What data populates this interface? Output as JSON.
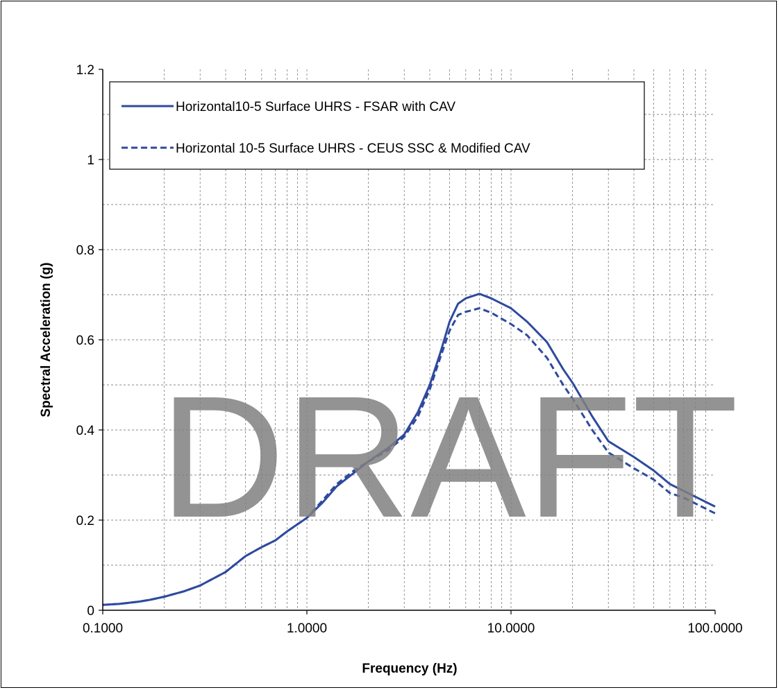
{
  "chart_data": {
    "type": "line",
    "xlabel": "Frequency (Hz)",
    "ylabel": "Spectral Acceleration (g)",
    "x_scale": "log",
    "xlim": [
      0.1,
      100
    ],
    "ylim": [
      0,
      1.2
    ],
    "x_ticks": [
      {
        "value": 0.1,
        "label": "0.1000"
      },
      {
        "value": 1,
        "label": "1.0000"
      },
      {
        "value": 10,
        "label": "10.0000"
      },
      {
        "value": 100,
        "label": "100.0000"
      }
    ],
    "y_ticks": [
      {
        "value": 0,
        "label": "0"
      },
      {
        "value": 0.2,
        "label": "0.2"
      },
      {
        "value": 0.4,
        "label": "0.4"
      },
      {
        "value": 0.6,
        "label": "0.6"
      },
      {
        "value": 0.8,
        "label": "0.8"
      },
      {
        "value": 1.0,
        "label": "1"
      },
      {
        "value": 1.2,
        "label": "1.2"
      }
    ],
    "grid": true,
    "legend_position": "top-left",
    "watermark": "DRAFT",
    "series": [
      {
        "name": "Horizontal10-5 Surface UHRS - FSAR with CAV",
        "style": "solid",
        "color": "#2e4a9e",
        "points": [
          [
            0.1,
            0.012
          ],
          [
            0.12,
            0.014
          ],
          [
            0.15,
            0.019
          ],
          [
            0.17,
            0.023
          ],
          [
            0.2,
            0.03
          ],
          [
            0.25,
            0.042
          ],
          [
            0.3,
            0.055
          ],
          [
            0.4,
            0.085
          ],
          [
            0.5,
            0.12
          ],
          [
            0.6,
            0.14
          ],
          [
            0.7,
            0.155
          ],
          [
            0.8,
            0.175
          ],
          [
            1.0,
            0.205
          ],
          [
            1.2,
            0.24
          ],
          [
            1.4,
            0.275
          ],
          [
            1.7,
            0.305
          ],
          [
            2.0,
            0.33
          ],
          [
            2.5,
            0.36
          ],
          [
            3.0,
            0.39
          ],
          [
            3.5,
            0.44
          ],
          [
            4.0,
            0.5
          ],
          [
            4.5,
            0.57
          ],
          [
            5.0,
            0.64
          ],
          [
            5.5,
            0.68
          ],
          [
            6.0,
            0.692
          ],
          [
            7.0,
            0.702
          ],
          [
            8.0,
            0.692
          ],
          [
            10.0,
            0.67
          ],
          [
            12.0,
            0.64
          ],
          [
            15.0,
            0.595
          ],
          [
            18.0,
            0.535
          ],
          [
            20.0,
            0.505
          ],
          [
            25.0,
            0.43
          ],
          [
            30.0,
            0.375
          ],
          [
            40.0,
            0.34
          ],
          [
            50.0,
            0.31
          ],
          [
            60.0,
            0.28
          ],
          [
            70.0,
            0.265
          ],
          [
            100.0,
            0.23
          ]
        ]
      },
      {
        "name": "Horizontal 10-5 Surface UHRS - CEUS SSC & Modified CAV",
        "style": "dashed",
        "color": "#2e4a9e",
        "points": [
          [
            0.1,
            0.012
          ],
          [
            0.12,
            0.014
          ],
          [
            0.15,
            0.019
          ],
          [
            0.17,
            0.023
          ],
          [
            0.2,
            0.03
          ],
          [
            0.25,
            0.042
          ],
          [
            0.3,
            0.055
          ],
          [
            0.4,
            0.085
          ],
          [
            0.5,
            0.12
          ],
          [
            0.6,
            0.14
          ],
          [
            0.7,
            0.155
          ],
          [
            0.8,
            0.175
          ],
          [
            1.0,
            0.205
          ],
          [
            1.2,
            0.245
          ],
          [
            1.4,
            0.28
          ],
          [
            1.7,
            0.31
          ],
          [
            2.0,
            0.33
          ],
          [
            2.5,
            0.355
          ],
          [
            3.0,
            0.385
          ],
          [
            3.5,
            0.43
          ],
          [
            4.0,
            0.49
          ],
          [
            4.5,
            0.56
          ],
          [
            5.0,
            0.62
          ],
          [
            5.5,
            0.655
          ],
          [
            6.0,
            0.662
          ],
          [
            7.0,
            0.67
          ],
          [
            8.0,
            0.66
          ],
          [
            10.0,
            0.635
          ],
          [
            12.0,
            0.61
          ],
          [
            15.0,
            0.56
          ],
          [
            18.0,
            0.5
          ],
          [
            20.0,
            0.47
          ],
          [
            25.0,
            0.4
          ],
          [
            30.0,
            0.35
          ],
          [
            40.0,
            0.315
          ],
          [
            50.0,
            0.29
          ],
          [
            60.0,
            0.26
          ],
          [
            70.0,
            0.25
          ],
          [
            100.0,
            0.215
          ]
        ]
      }
    ]
  }
}
